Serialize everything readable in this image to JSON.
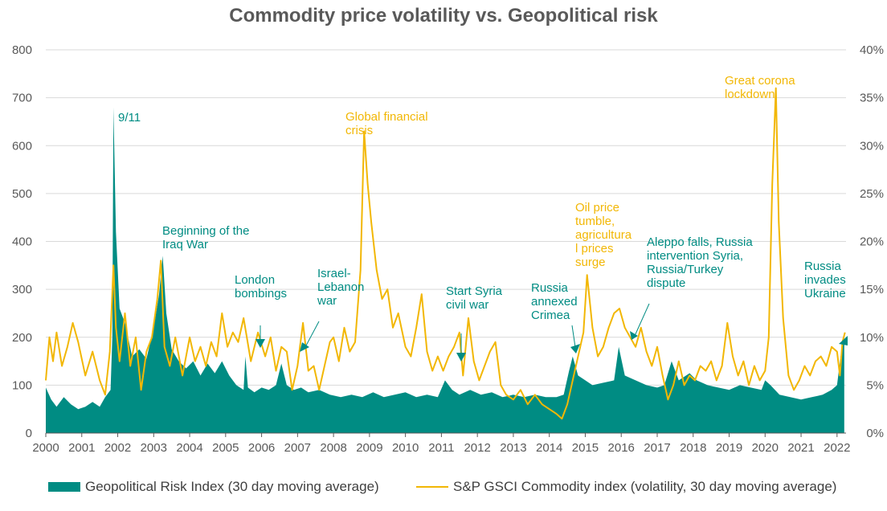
{
  "title": "Commodity price volatility vs. Geopolitical risk",
  "legend": {
    "gpr": "Geopolitical Risk Index (30 day moving average)",
    "vol": "S&P GSCI Commodity index (volatility, 30 day moving average)"
  },
  "colors": {
    "gpr": "#008C83",
    "vol": "#F2B705",
    "text": "#595959",
    "grid": "#D9D9D9"
  },
  "chart_data": {
    "type": "area+line",
    "title": "Commodity price volatility vs. Geopolitical risk",
    "x_ticks": [
      "2000",
      "2001",
      "2002",
      "2003",
      "2004",
      "2005",
      "2006",
      "2007",
      "2008",
      "2009",
      "2010",
      "2011",
      "2012",
      "2013",
      "2014",
      "2015",
      "2016",
      "2017",
      "2018",
      "2019",
      "2020",
      "2021",
      "2022"
    ],
    "x_range": [
      2000.0,
      2022.25
    ],
    "y_left": {
      "range": [
        0,
        800
      ],
      "ticks": [
        "0",
        "100",
        "200",
        "300",
        "400",
        "500",
        "600",
        "700",
        "800"
      ]
    },
    "y_right": {
      "range": [
        0,
        40
      ],
      "ticks": [
        "0%",
        "5%",
        "10%",
        "15%",
        "20%",
        "25%",
        "30%",
        "35%",
        "40%"
      ]
    },
    "grid": true,
    "legend_position": "bottom",
    "series": [
      {
        "name": "Geopolitical Risk Index (30 day moving average)",
        "type": "area",
        "axis": "left",
        "points": [
          [
            2000.0,
            95
          ],
          [
            2000.15,
            70
          ],
          [
            2000.3,
            55
          ],
          [
            2000.5,
            75
          ],
          [
            2000.7,
            60
          ],
          [
            2000.9,
            50
          ],
          [
            2001.1,
            55
          ],
          [
            2001.3,
            65
          ],
          [
            2001.5,
            55
          ],
          [
            2001.65,
            75
          ],
          [
            2001.8,
            90
          ],
          [
            2001.85,
            200
          ],
          [
            2001.88,
            680
          ],
          [
            2001.95,
            420
          ],
          [
            2002.05,
            260
          ],
          [
            2002.2,
            230
          ],
          [
            2002.4,
            160
          ],
          [
            2002.6,
            175
          ],
          [
            2002.8,
            155
          ],
          [
            2003.0,
            220
          ],
          [
            2003.15,
            290
          ],
          [
            2003.25,
            370
          ],
          [
            2003.35,
            250
          ],
          [
            2003.5,
            175
          ],
          [
            2003.7,
            150
          ],
          [
            2003.9,
            135
          ],
          [
            2004.1,
            150
          ],
          [
            2004.3,
            120
          ],
          [
            2004.5,
            145
          ],
          [
            2004.7,
            125
          ],
          [
            2004.9,
            150
          ],
          [
            2005.1,
            120
          ],
          [
            2005.3,
            100
          ],
          [
            2005.5,
            90
          ],
          [
            2005.55,
            160
          ],
          [
            2005.62,
            95
          ],
          [
            2005.8,
            85
          ],
          [
            2006.0,
            95
          ],
          [
            2006.2,
            90
          ],
          [
            2006.4,
            100
          ],
          [
            2006.55,
            145
          ],
          [
            2006.7,
            100
          ],
          [
            2006.9,
            90
          ],
          [
            2007.1,
            95
          ],
          [
            2007.3,
            85
          ],
          [
            2007.6,
            90
          ],
          [
            2007.9,
            80
          ],
          [
            2008.2,
            75
          ],
          [
            2008.5,
            80
          ],
          [
            2008.8,
            75
          ],
          [
            2009.1,
            85
          ],
          [
            2009.4,
            75
          ],
          [
            2009.7,
            80
          ],
          [
            2010.0,
            85
          ],
          [
            2010.3,
            75
          ],
          [
            2010.6,
            80
          ],
          [
            2010.9,
            75
          ],
          [
            2011.1,
            110
          ],
          [
            2011.3,
            90
          ],
          [
            2011.5,
            80
          ],
          [
            2011.8,
            90
          ],
          [
            2012.1,
            80
          ],
          [
            2012.4,
            85
          ],
          [
            2012.7,
            75
          ],
          [
            2013.0,
            80
          ],
          [
            2013.3,
            75
          ],
          [
            2013.6,
            80
          ],
          [
            2013.9,
            75
          ],
          [
            2014.2,
            75
          ],
          [
            2014.4,
            80
          ],
          [
            2014.55,
            130
          ],
          [
            2014.65,
            160
          ],
          [
            2014.8,
            120
          ],
          [
            2015.0,
            110
          ],
          [
            2015.2,
            100
          ],
          [
            2015.5,
            105
          ],
          [
            2015.8,
            110
          ],
          [
            2015.93,
            180
          ],
          [
            2016.1,
            120
          ],
          [
            2016.4,
            110
          ],
          [
            2016.7,
            100
          ],
          [
            2017.0,
            95
          ],
          [
            2017.2,
            100
          ],
          [
            2017.4,
            150
          ],
          [
            2017.6,
            110
          ],
          [
            2017.9,
            125
          ],
          [
            2018.1,
            110
          ],
          [
            2018.4,
            100
          ],
          [
            2018.7,
            95
          ],
          [
            2019.0,
            90
          ],
          [
            2019.3,
            100
          ],
          [
            2019.6,
            95
          ],
          [
            2019.9,
            90
          ],
          [
            2020.0,
            110
          ],
          [
            2020.15,
            100
          ],
          [
            2020.4,
            80
          ],
          [
            2020.7,
            75
          ],
          [
            2021.0,
            70
          ],
          [
            2021.3,
            75
          ],
          [
            2021.6,
            80
          ],
          [
            2021.85,
            90
          ],
          [
            2022.0,
            100
          ],
          [
            2022.1,
            160
          ],
          [
            2022.2,
            200
          ]
        ]
      },
      {
        "name": "S&P GSCI Commodity index (volatility, 30 day moving average)",
        "type": "line",
        "axis": "right",
        "points": [
          [
            2000.0,
            5.5
          ],
          [
            2000.1,
            10.0
          ],
          [
            2000.2,
            7.5
          ],
          [
            2000.3,
            10.5
          ],
          [
            2000.45,
            7.0
          ],
          [
            2000.6,
            9.0
          ],
          [
            2000.75,
            11.5
          ],
          [
            2000.9,
            9.5
          ],
          [
            2001.1,
            6.0
          ],
          [
            2001.3,
            8.5
          ],
          [
            2001.5,
            5.5
          ],
          [
            2001.65,
            4.0
          ],
          [
            2001.78,
            8.5
          ],
          [
            2001.88,
            17.5
          ],
          [
            2001.95,
            11.0
          ],
          [
            2002.05,
            7.5
          ],
          [
            2002.2,
            12.5
          ],
          [
            2002.35,
            7.0
          ],
          [
            2002.5,
            10.0
          ],
          [
            2002.65,
            4.5
          ],
          [
            2002.8,
            8.5
          ],
          [
            2002.95,
            10.0
          ],
          [
            2003.1,
            14.0
          ],
          [
            2003.2,
            18.0
          ],
          [
            2003.3,
            9.0
          ],
          [
            2003.45,
            7.0
          ],
          [
            2003.6,
            10.0
          ],
          [
            2003.8,
            6.0
          ],
          [
            2004.0,
            10.0
          ],
          [
            2004.15,
            7.5
          ],
          [
            2004.3,
            9.0
          ],
          [
            2004.45,
            7.0
          ],
          [
            2004.6,
            9.5
          ],
          [
            2004.75,
            8.0
          ],
          [
            2004.9,
            12.5
          ],
          [
            2005.05,
            9.0
          ],
          [
            2005.2,
            10.5
          ],
          [
            2005.35,
            9.5
          ],
          [
            2005.5,
            12.0
          ],
          [
            2005.7,
            7.5
          ],
          [
            2005.9,
            10.5
          ],
          [
            2006.1,
            8.0
          ],
          [
            2006.25,
            10.0
          ],
          [
            2006.4,
            6.5
          ],
          [
            2006.55,
            9.0
          ],
          [
            2006.7,
            8.5
          ],
          [
            2006.85,
            4.5
          ],
          [
            2007.0,
            7.0
          ],
          [
            2007.15,
            11.5
          ],
          [
            2007.3,
            6.5
          ],
          [
            2007.45,
            7.0
          ],
          [
            2007.6,
            4.5
          ],
          [
            2007.75,
            7.0
          ],
          [
            2007.9,
            9.5
          ],
          [
            2008.0,
            10.0
          ],
          [
            2008.15,
            7.5
          ],
          [
            2008.3,
            11.0
          ],
          [
            2008.45,
            8.5
          ],
          [
            2008.6,
            9.5
          ],
          [
            2008.75,
            17.0
          ],
          [
            2008.85,
            31.5
          ],
          [
            2008.95,
            26.0
          ],
          [
            2009.05,
            22.0
          ],
          [
            2009.2,
            17.0
          ],
          [
            2009.35,
            14.0
          ],
          [
            2009.5,
            15.0
          ],
          [
            2009.65,
            11.0
          ],
          [
            2009.8,
            12.5
          ],
          [
            2010.0,
            9.0
          ],
          [
            2010.15,
            8.0
          ],
          [
            2010.3,
            11.0
          ],
          [
            2010.45,
            14.5
          ],
          [
            2010.6,
            8.5
          ],
          [
            2010.75,
            6.5
          ],
          [
            2010.9,
            8.0
          ],
          [
            2011.05,
            6.5
          ],
          [
            2011.2,
            8.0
          ],
          [
            2011.35,
            9.0
          ],
          [
            2011.5,
            10.5
          ],
          [
            2011.6,
            6.0
          ],
          [
            2011.75,
            12.0
          ],
          [
            2011.9,
            7.5
          ],
          [
            2012.05,
            5.5
          ],
          [
            2012.2,
            7.0
          ],
          [
            2012.35,
            8.5
          ],
          [
            2012.5,
            9.5
          ],
          [
            2012.65,
            5.0
          ],
          [
            2012.8,
            4.0
          ],
          [
            2013.0,
            3.5
          ],
          [
            2013.2,
            4.5
          ],
          [
            2013.4,
            3.0
          ],
          [
            2013.6,
            4.0
          ],
          [
            2013.8,
            3.0
          ],
          [
            2014.0,
            2.5
          ],
          [
            2014.2,
            2.0
          ],
          [
            2014.35,
            1.5
          ],
          [
            2014.5,
            3.0
          ],
          [
            2014.65,
            5.5
          ],
          [
            2014.8,
            8.0
          ],
          [
            2014.95,
            10.5
          ],
          [
            2015.05,
            16.5
          ],
          [
            2015.2,
            11.0
          ],
          [
            2015.35,
            8.0
          ],
          [
            2015.5,
            9.0
          ],
          [
            2015.65,
            11.0
          ],
          [
            2015.8,
            12.5
          ],
          [
            2015.95,
            13.0
          ],
          [
            2016.1,
            11.0
          ],
          [
            2016.25,
            10.0
          ],
          [
            2016.4,
            9.0
          ],
          [
            2016.55,
            11.0
          ],
          [
            2016.7,
            8.5
          ],
          [
            2016.85,
            7.0
          ],
          [
            2017.0,
            9.0
          ],
          [
            2017.15,
            6.0
          ],
          [
            2017.3,
            3.5
          ],
          [
            2017.45,
            5.0
          ],
          [
            2017.6,
            7.5
          ],
          [
            2017.75,
            5.0
          ],
          [
            2017.9,
            6.0
          ],
          [
            2018.05,
            5.5
          ],
          [
            2018.2,
            7.0
          ],
          [
            2018.35,
            6.5
          ],
          [
            2018.5,
            7.5
          ],
          [
            2018.65,
            5.5
          ],
          [
            2018.8,
            7.0
          ],
          [
            2018.95,
            11.5
          ],
          [
            2019.1,
            8.0
          ],
          [
            2019.25,
            6.0
          ],
          [
            2019.4,
            7.5
          ],
          [
            2019.55,
            5.0
          ],
          [
            2019.7,
            7.0
          ],
          [
            2019.85,
            5.5
          ],
          [
            2020.0,
            6.5
          ],
          [
            2020.1,
            10.0
          ],
          [
            2020.2,
            26.0
          ],
          [
            2020.3,
            36.0
          ],
          [
            2020.38,
            22.0
          ],
          [
            2020.5,
            12.0
          ],
          [
            2020.65,
            6.0
          ],
          [
            2020.8,
            4.5
          ],
          [
            2020.95,
            5.5
          ],
          [
            2021.1,
            7.0
          ],
          [
            2021.25,
            6.0
          ],
          [
            2021.4,
            7.5
          ],
          [
            2021.55,
            8.0
          ],
          [
            2021.7,
            7.0
          ],
          [
            2021.85,
            9.0
          ],
          [
            2022.0,
            8.5
          ],
          [
            2022.08,
            6.0
          ],
          [
            2022.15,
            9.5
          ],
          [
            2022.22,
            10.5
          ]
        ]
      }
    ],
    "annotations": [
      {
        "text": [
          "9/11"
        ],
        "color": "gpr"
      },
      {
        "text": [
          "Beginning of the",
          "Iraq War"
        ],
        "color": "gpr"
      },
      {
        "text": [
          "London",
          "bombings"
        ],
        "color": "gpr"
      },
      {
        "text": [
          "Israel-",
          "Lebanon",
          "war"
        ],
        "color": "gpr"
      },
      {
        "text": [
          "Global financial",
          "crisis"
        ],
        "color": "vol"
      },
      {
        "text": [
          "Start  Syria",
          "civil war"
        ],
        "color": "gpr"
      },
      {
        "text": [
          "Russia",
          "annexed",
          "Crimea"
        ],
        "color": "gpr"
      },
      {
        "text": [
          "Oil price",
          "tumble,",
          "agricultura",
          "l prices",
          "surge"
        ],
        "color": "vol"
      },
      {
        "text": [
          "Aleppo falls, Russia",
          "intervention  Syria,",
          "Russia/Turkey",
          "dispute"
        ],
        "color": "gpr"
      },
      {
        "text": [
          "Great corona",
          "lockdown"
        ],
        "color": "vol"
      },
      {
        "text": [
          "Russia",
          "invades",
          "Ukraine"
        ],
        "color": "gpr"
      }
    ]
  }
}
